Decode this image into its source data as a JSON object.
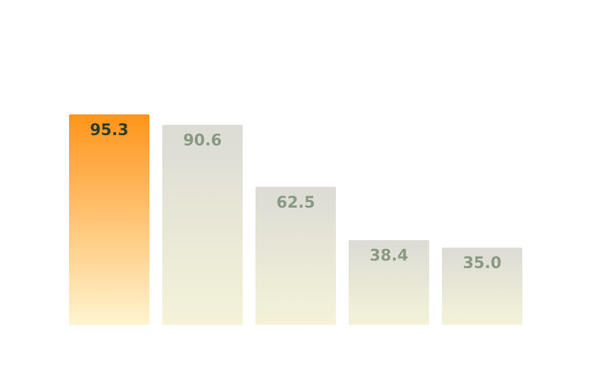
{
  "chart_data": {
    "type": "bar",
    "title": "",
    "xlabel": "",
    "ylabel": "",
    "ylim": [
      0,
      130
    ],
    "grid": false,
    "legend": "none",
    "categories": [
      "",
      "",
      "",
      "",
      ""
    ],
    "values": [
      95.3,
      90.6,
      62.5,
      38.4,
      35.0
    ],
    "value_labels": [
      "95.3",
      "90.6",
      "62.5",
      "38.4",
      "35.0"
    ],
    "highlight_index": 0
  },
  "colors": {
    "highlight_top": "#ff9419",
    "highlight_bottom": "#fff4d0",
    "muted_top": "#dcdbd5",
    "muted_bottom": "#f4f3d8",
    "highlight_label": "#2e3f24",
    "muted_label": "#8a9a84"
  }
}
